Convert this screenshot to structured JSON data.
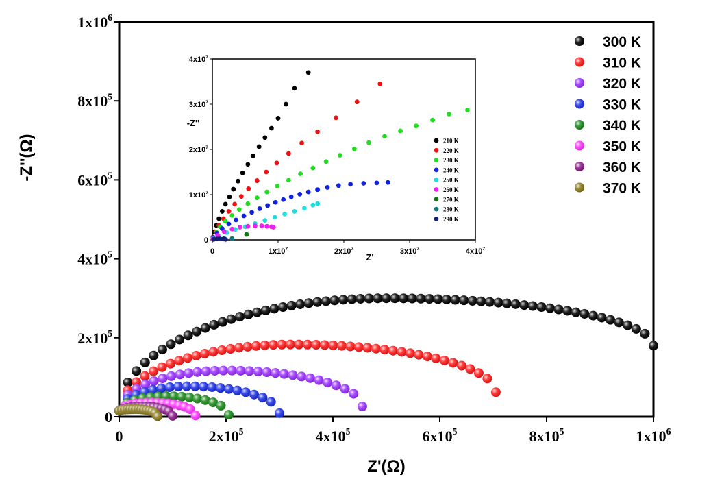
{
  "chart_data": [
    {
      "type": "scatter",
      "xlabel": "Z'(Ω)",
      "ylabel": "-Z''(Ω)",
      "xlim": [
        0,
        1000000
      ],
      "ylim": [
        0,
        1000000
      ],
      "xticks": [
        {
          "value": 0,
          "mant": "0",
          "exp": ""
        },
        {
          "value": 200000,
          "mant": "2x10",
          "exp": "5"
        },
        {
          "value": 400000,
          "mant": "4x10",
          "exp": "5"
        },
        {
          "value": 600000,
          "mant": "6x10",
          "exp": "5"
        },
        {
          "value": 800000,
          "mant": "8x10",
          "exp": "5"
        },
        {
          "value": 1000000,
          "mant": "1x10",
          "exp": "6"
        }
      ],
      "yticks": [
        {
          "value": 0,
          "mant": "0",
          "exp": ""
        },
        {
          "value": 200000,
          "mant": "2x10",
          "exp": "5"
        },
        {
          "value": 400000,
          "mant": "4x10",
          "exp": "5"
        },
        {
          "value": 600000,
          "mant": "6x10",
          "exp": "5"
        },
        {
          "value": 800000,
          "mant": "8x10",
          "exp": "5"
        },
        {
          "value": 1000000,
          "mant": "1x10",
          "exp": "6"
        }
      ],
      "grid": false,
      "legend_position": "top-right",
      "series": [
        {
          "name": "300 K",
          "color": "#000000",
          "arc_x_start": 0,
          "arc_x_end": 1000000,
          "peak_x": 500000,
          "peak_y": 300000,
          "end_y": 180000
        },
        {
          "name": "310 K",
          "color": "#ff1a1a",
          "arc_x_start": 0,
          "arc_x_end": 705000,
          "peak_x": 325000,
          "peak_y": 183000,
          "end_y": 62000
        },
        {
          "name": "320 K",
          "color": "#9b30ff",
          "arc_x_start": 0,
          "arc_x_end": 455000,
          "peak_x": 200000,
          "peak_y": 117000,
          "end_y": 26000
        },
        {
          "name": "330 K",
          "color": "#1a2ee6",
          "arc_x_start": 0,
          "arc_x_end": 300000,
          "peak_x": 130000,
          "peak_y": 77000,
          "end_y": 9000
        },
        {
          "name": "340 K",
          "color": "#1a8a1a",
          "arc_x_start": 0,
          "arc_x_end": 205000,
          "peak_x": 90000,
          "peak_y": 52000,
          "end_y": 5000
        },
        {
          "name": "350 K",
          "color": "#ff33ff",
          "arc_x_start": 0,
          "arc_x_end": 143000,
          "peak_x": 62000,
          "peak_y": 36000,
          "end_y": 3000
        },
        {
          "name": "360 K",
          "color": "#8a1a8a",
          "arc_x_start": 0,
          "arc_x_end": 100000,
          "peak_x": 45000,
          "peak_y": 26000,
          "end_y": 2000
        },
        {
          "name": "370 K",
          "color": "#8a7a1a",
          "arc_x_start": 0,
          "arc_x_end": 72000,
          "peak_x": 32000,
          "peak_y": 19000,
          "end_y": 1000
        }
      ]
    },
    {
      "type": "scatter",
      "title": "",
      "xlabel": "Z'",
      "ylabel": "-Z''",
      "xlim": [
        0,
        40000000
      ],
      "ylim": [
        0,
        40000000
      ],
      "xticks": [
        {
          "value": 0,
          "mant": "0",
          "exp": ""
        },
        {
          "value": 10000000,
          "mant": "1x10",
          "exp": "7"
        },
        {
          "value": 20000000,
          "mant": "2x10",
          "exp": "7"
        },
        {
          "value": 30000000,
          "mant": "3x10",
          "exp": "7"
        },
        {
          "value": 40000000,
          "mant": "4x10",
          "exp": "7"
        }
      ],
      "yticks": [
        {
          "value": 0,
          "mant": "0",
          "exp": ""
        },
        {
          "value": 10000000,
          "mant": "1x10",
          "exp": "7"
        },
        {
          "value": 20000000,
          "mant": "2x10",
          "exp": "7"
        },
        {
          "value": 30000000,
          "mant": "3x10",
          "exp": "7"
        },
        {
          "value": 40000000,
          "mant": "4x10",
          "exp": "7"
        }
      ],
      "grid": false,
      "legend_position": "right",
      "series": [
        {
          "name": "210 K",
          "color": "#000000",
          "x": [
            100000,
            300000,
            600000,
            1000000,
            1500000,
            2000000,
            2600000,
            3200000,
            3900000,
            4600000,
            5400000,
            6200000,
            7100000,
            8000000,
            9000000,
            10000000,
            11200000,
            12500000,
            14600000
          ],
          "y": [
            600000,
            1800000,
            3200000,
            4700000,
            6300000,
            7900000,
            9500000,
            11200000,
            13000000,
            14800000,
            16700000,
            18600000,
            20600000,
            22600000,
            24700000,
            26900000,
            30000000,
            33500000,
            37000000
          ]
        },
        {
          "name": "220 K",
          "color": "#ee1111",
          "x": [
            100000,
            500000,
            1000000,
            1700000,
            2500000,
            3400000,
            4400000,
            5500000,
            6800000,
            8200000,
            9800000,
            11600000,
            13600000,
            16000000,
            18800000,
            22000000,
            25500000
          ],
          "y": [
            500000,
            1800000,
            3200000,
            4700000,
            6300000,
            7900000,
            9600000,
            11300000,
            13100000,
            15000000,
            17000000,
            19100000,
            21400000,
            23900000,
            27000000,
            30500000,
            34500000
          ]
        },
        {
          "name": "230 K",
          "color": "#22dd22",
          "x": [
            100000,
            600000,
            1200000,
            2000000,
            3000000,
            4100000,
            5400000,
            6800000,
            8300000,
            9900000,
            11600000,
            13400000,
            15300000,
            17300000,
            19400000,
            21600000,
            23800000,
            26200000,
            28600000,
            31000000,
            33500000,
            36000000,
            38800000
          ],
          "y": [
            500000,
            1700000,
            2900000,
            4100000,
            5400000,
            6700000,
            8000000,
            9300000,
            10600000,
            11900000,
            13200000,
            14600000,
            15900000,
            17300000,
            18700000,
            20100000,
            21500000,
            22900000,
            24100000,
            25200000,
            26500000,
            27800000,
            28700000
          ]
        },
        {
          "name": "240 K",
          "color": "#1122dd",
          "x": [
            100000,
            700000,
            1500000,
            2500000,
            3600000,
            4800000,
            6000000,
            7200000,
            8400000,
            9600000,
            10800000,
            12000000,
            13300000,
            14600000,
            16000000,
            17500000,
            19200000,
            21000000,
            23000000,
            25000000,
            26700000
          ],
          "y": [
            500000,
            1500000,
            2500000,
            3500000,
            4400000,
            5300000,
            6100000,
            6900000,
            7600000,
            8300000,
            8900000,
            9500000,
            10100000,
            10600000,
            11100000,
            11600000,
            12000000,
            12300000,
            12500000,
            12600000,
            12700000
          ]
        },
        {
          "name": "250 K",
          "color": "#22dddd",
          "x": [
            100000,
            1000000,
            2200000,
            3500000,
            5000000,
            6500000,
            8000000,
            9500000,
            11000000,
            12500000,
            14000000,
            15300000,
            16000000
          ],
          "y": [
            300000,
            900000,
            1600000,
            2300000,
            2900000,
            3600000,
            4300000,
            5000000,
            5700000,
            6300000,
            7000000,
            7700000,
            8000000
          ]
        },
        {
          "name": "260 K",
          "color": "#ee22ee",
          "x": [
            100000,
            800000,
            1800000,
            3000000,
            4200000,
            5400000,
            6500000,
            7500000,
            8300000,
            9000000,
            9300000
          ],
          "y": [
            200000,
            1000000,
            1800000,
            2400000,
            2800000,
            3000000,
            3100000,
            3100000,
            3000000,
            2900000,
            2800000
          ]
        },
        {
          "name": "270 K",
          "color": "#117711",
          "x": [
            5200000
          ],
          "y": [
            1200000
          ]
        },
        {
          "name": "280 K",
          "color": "#117777",
          "x": [
            300000,
            1000000,
            1800000,
            3000000
          ],
          "y": [
            200000,
            300000,
            300000,
            300000
          ]
        },
        {
          "name": "290 K",
          "color": "#112277",
          "x": [
            200000,
            700000,
            1200000,
            1700000,
            2000000
          ],
          "y": [
            100000,
            200000,
            200000,
            200000,
            100000
          ]
        }
      ]
    }
  ]
}
